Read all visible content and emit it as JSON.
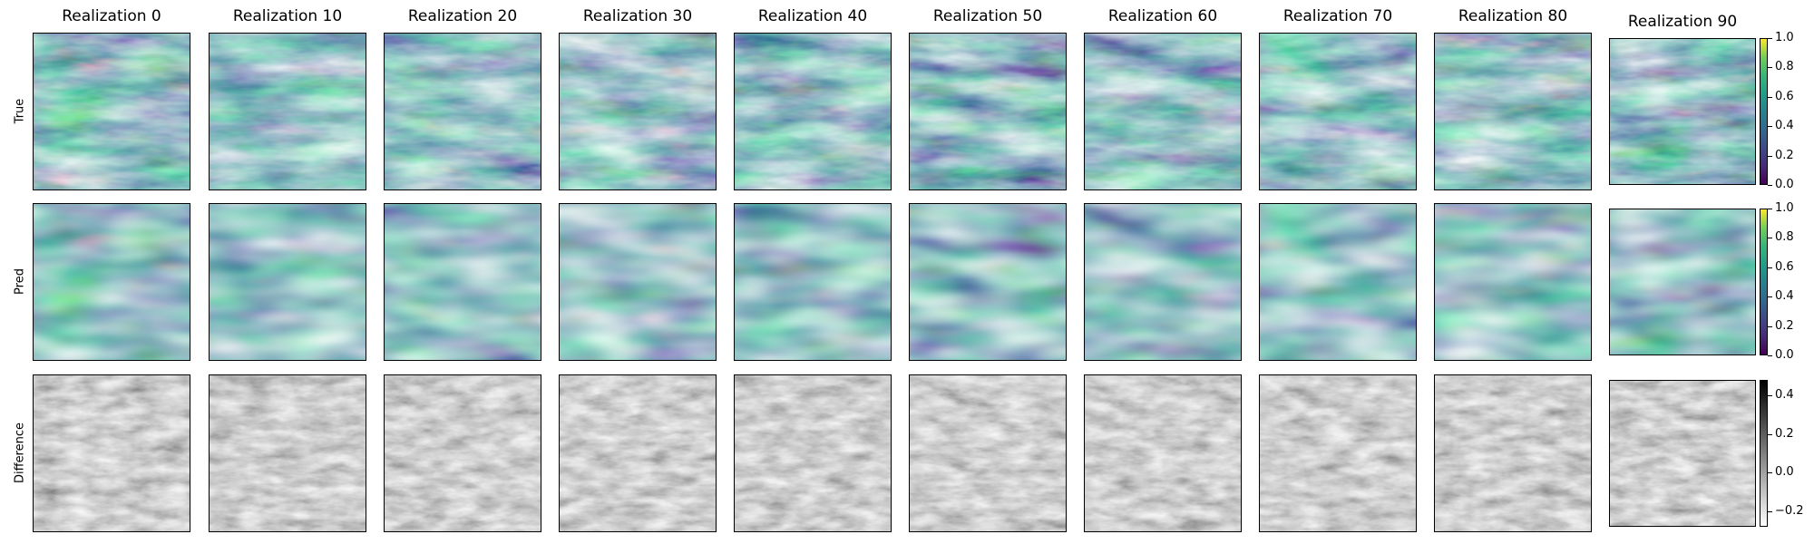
{
  "chart_data": {
    "type": "heatmap",
    "columns": [
      "Realization 0",
      "Realization 10",
      "Realization 20",
      "Realization 30",
      "Realization 40",
      "Realization 50",
      "Realization 60",
      "Realization 70",
      "Realization 80",
      "Realization 90"
    ],
    "rows": [
      "True",
      "Pred",
      "Difference"
    ],
    "colormaps": {
      "True": "viridis",
      "Pred": "viridis",
      "Difference": "gray_r"
    },
    "colorbars": [
      {
        "row": "True",
        "range": [
          0.0,
          1.0
        ],
        "ticks": [
          "0.0",
          "0.2",
          "0.4",
          "0.6",
          "0.8",
          "1.0"
        ]
      },
      {
        "row": "Pred",
        "range": [
          0.0,
          1.0
        ],
        "ticks": [
          "0.0",
          "0.2",
          "0.4",
          "0.6",
          "0.8",
          "1.0"
        ]
      },
      {
        "row": "Difference",
        "range": [
          -0.28,
          0.48
        ],
        "ticks": [
          "−0.2",
          "0.0",
          "0.2",
          "0.4"
        ]
      }
    ],
    "axes_ticks_visible": false
  }
}
